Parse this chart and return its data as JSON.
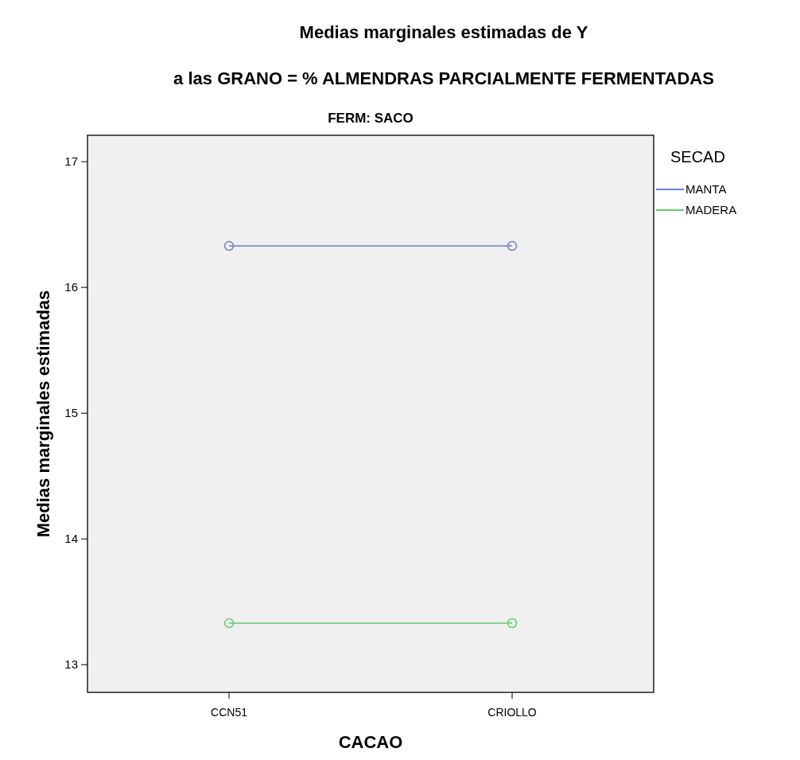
{
  "chart_data": {
    "type": "line",
    "title": "Medias marginales estimadas de Y",
    "subtitle": "a las GRANO = % ALMENDRAS PARCIALMENTE FERMENTADAS",
    "annotations": [
      "FERM: SACO"
    ],
    "xlabel": "CACAO",
    "ylabel": "Medias marginales estimadas",
    "legend_title": "SECAD",
    "categories": [
      "CCN51",
      "CRIOLLO"
    ],
    "series": [
      {
        "name": "MANTA",
        "color": "#6b7fc8",
        "values": [
          16.33,
          16.33
        ]
      },
      {
        "name": "MADERA",
        "color": "#5fcd6c",
        "values": [
          13.33,
          13.33
        ]
      }
    ],
    "ylim": [
      12.78,
      17.21
    ],
    "yticks": [
      13,
      14,
      15,
      16,
      17
    ],
    "grid": false,
    "legend": "top right",
    "marker": "circle",
    "line_style": "solid"
  }
}
